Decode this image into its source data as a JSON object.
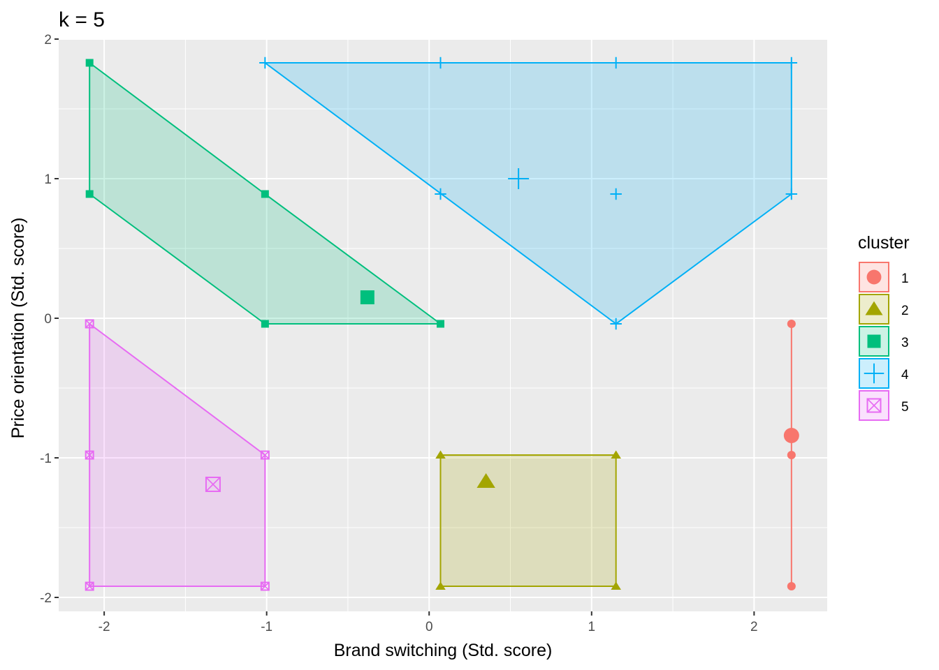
{
  "chart_data": {
    "type": "scatter",
    "title": "k = 5",
    "xlabel": "Brand switching (Std. score)",
    "ylabel": "Price orientation (Std. score)",
    "xlim": [
      -2.28,
      2.45
    ],
    "ylim": [
      -2.1,
      2.0
    ],
    "x_ticks": [
      -2,
      -1,
      0,
      1,
      2
    ],
    "x_tick_labels": [
      "-2",
      "-1",
      "0",
      "1",
      "2"
    ],
    "y_ticks": [
      -2,
      -1,
      0,
      1,
      2
    ],
    "y_tick_labels": [
      "-2",
      "-1",
      "0",
      "1",
      "2"
    ],
    "grid": true,
    "legend": {
      "title": "cluster",
      "position": "right"
    },
    "series": [
      {
        "name": "1",
        "color": "#F8766D",
        "shape": "circle",
        "points": [
          [
            2.23,
            -0.04
          ],
          [
            2.23,
            -0.98
          ],
          [
            2.23,
            -1.92
          ]
        ],
        "hull": [
          [
            2.23,
            -0.04
          ],
          [
            2.23,
            -1.92
          ]
        ],
        "center": [
          2.23,
          -0.84
        ]
      },
      {
        "name": "2",
        "color": "#A3A500",
        "shape": "triangle",
        "points": [
          [
            0.07,
            -0.98
          ],
          [
            1.15,
            -0.98
          ],
          [
            0.07,
            -1.92
          ],
          [
            1.15,
            -1.92
          ]
        ],
        "hull": [
          [
            0.07,
            -0.98
          ],
          [
            1.15,
            -0.98
          ],
          [
            1.15,
            -1.92
          ],
          [
            0.07,
            -1.92
          ]
        ],
        "center": [
          0.35,
          -1.17
        ]
      },
      {
        "name": "3",
        "color": "#00BF7D",
        "shape": "square",
        "points": [
          [
            -2.09,
            1.83
          ],
          [
            -2.09,
            0.89
          ],
          [
            -1.01,
            0.89
          ],
          [
            -1.01,
            -0.04
          ],
          [
            0.07,
            -0.04
          ]
        ],
        "hull": [
          [
            -2.09,
            1.83
          ],
          [
            -1.01,
            0.89
          ],
          [
            0.07,
            -0.04
          ],
          [
            -1.01,
            -0.04
          ],
          [
            -2.09,
            0.89
          ]
        ],
        "center": [
          -0.38,
          0.15
        ]
      },
      {
        "name": "4",
        "color": "#00B0F6",
        "shape": "plus",
        "points": [
          [
            -1.01,
            1.83
          ],
          [
            0.07,
            1.83
          ],
          [
            1.15,
            1.83
          ],
          [
            2.23,
            1.83
          ],
          [
            0.07,
            0.89
          ],
          [
            1.15,
            0.89
          ],
          [
            2.23,
            0.89
          ],
          [
            1.15,
            -0.04
          ]
        ],
        "hull": [
          [
            -1.01,
            1.83
          ],
          [
            2.23,
            1.83
          ],
          [
            2.23,
            0.89
          ],
          [
            1.15,
            -0.04
          ]
        ],
        "center": [
          0.55,
          1.0
        ]
      },
      {
        "name": "5",
        "color": "#E76BF3",
        "shape": "boxx",
        "points": [
          [
            -2.09,
            -0.04
          ],
          [
            -2.09,
            -0.98
          ],
          [
            -1.01,
            -0.98
          ],
          [
            -2.09,
            -1.92
          ],
          [
            -1.01,
            -1.92
          ]
        ],
        "hull": [
          [
            -2.09,
            -0.04
          ],
          [
            -1.01,
            -0.98
          ],
          [
            -1.01,
            -1.92
          ],
          [
            -2.09,
            -1.92
          ]
        ],
        "center": [
          -1.33,
          -1.19
        ]
      }
    ]
  }
}
